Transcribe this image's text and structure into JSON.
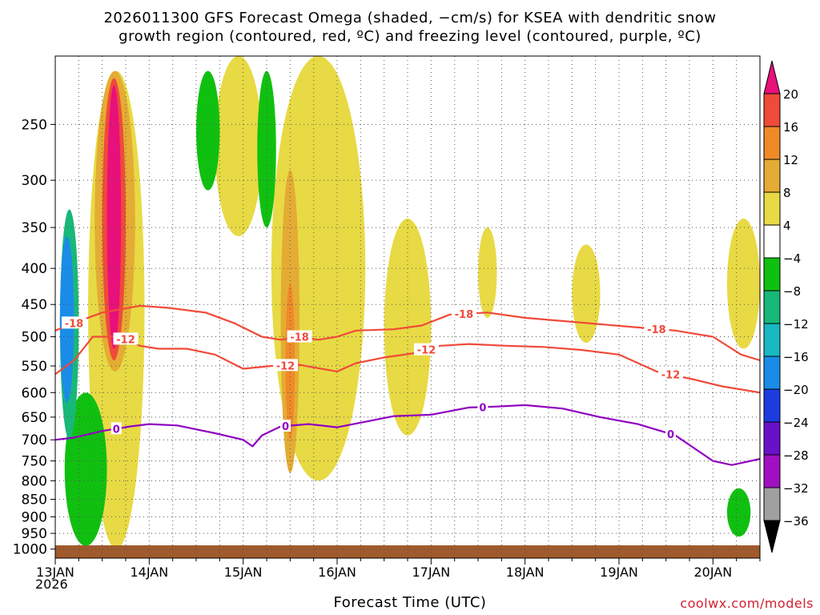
{
  "title_line1": "2026011300 GFS Forecast Omega (shaded, −cm/s) for KSEA with dendritic snow",
  "title_line2": "growth region (contoured, red, ºC) and freezing level (contoured, purple, ºC)",
  "credit": "coolwx.com/models",
  "chart_data": {
    "type": "heatmap",
    "title": "2026011300 GFS Forecast Omega (shaded, −cm/s) for KSEA with dendritic snow growth region (contoured, red, ºC) and freezing level (contoured, purple, ºC)",
    "xlabel": "Forecast Time (UTC)",
    "ylabel": "",
    "x_ticks": [
      "13JAN",
      "14JAN",
      "15JAN",
      "16JAN",
      "17JAN",
      "18JAN",
      "19JAN",
      "20JAN"
    ],
    "x_year": "2026",
    "xlim_days": [
      0,
      7.5
    ],
    "y_ticks": [
      250,
      300,
      350,
      400,
      450,
      500,
      550,
      600,
      650,
      700,
      750,
      800,
      850,
      900,
      950,
      1000
    ],
    "ylim": [
      1030,
      200
    ],
    "y_scale": "log-pressure",
    "grid": true,
    "colorbar": {
      "labels": [
        "20",
        "16",
        "12",
        "8",
        "4",
        "−4",
        "−8",
        "−12",
        "−16",
        "−20",
        "−24",
        "−28",
        "−32",
        "−36"
      ],
      "colors": [
        "#e8107a",
        "#f04a3a",
        "#f08a28",
        "#e4ac34",
        "#e8da44",
        "#ffffff",
        "#10c010",
        "#18b878",
        "#1ab8c0",
        "#1a8ce8",
        "#1c3ce0",
        "#6a10c8",
        "#a010c0",
        "#a0a0a0"
      ],
      "top_color": "#e8107a",
      "bottom_color": "#000000"
    },
    "omega_regions": [
      {
        "level": "4",
        "t": [
          0.35,
          0.95
        ],
        "p": [
          210,
          1000
        ]
      },
      {
        "level": "8",
        "t": [
          0.42,
          0.85
        ],
        "p": [
          210,
          560
        ]
      },
      {
        "level": "16",
        "t": [
          0.5,
          0.75
        ],
        "p": [
          215,
          540
        ]
      },
      {
        "level": "20",
        "t": [
          0.55,
          0.7
        ],
        "p": [
          220,
          520
        ]
      },
      {
        "level": "-8",
        "t": [
          0.1,
          0.55
        ],
        "p": [
          600,
          990
        ]
      },
      {
        "level": "-12",
        "t": [
          0.05,
          0.25
        ],
        "p": [
          330,
          700
        ]
      },
      {
        "level": "-20",
        "t": [
          0.05,
          0.2
        ],
        "p": [
          360,
          620
        ]
      },
      {
        "level": "4",
        "t": [
          1.7,
          2.2
        ],
        "p": [
          200,
          360
        ]
      },
      {
        "level": "4",
        "t": [
          2.3,
          3.3
        ],
        "p": [
          200,
          800
        ]
      },
      {
        "level": "8",
        "t": [
          2.4,
          2.6
        ],
        "p": [
          290,
          780
        ]
      },
      {
        "level": "12",
        "t": [
          2.45,
          2.55
        ],
        "p": [
          420,
          700
        ]
      },
      {
        "level": "4",
        "t": [
          3.5,
          4.0
        ],
        "p": [
          340,
          690
        ]
      },
      {
        "level": "4",
        "t": [
          4.5,
          4.7
        ],
        "p": [
          350,
          470
        ]
      },
      {
        "level": "4",
        "t": [
          5.5,
          5.8
        ],
        "p": [
          370,
          510
        ]
      },
      {
        "level": "4",
        "t": [
          7.15,
          7.5
        ],
        "p": [
          340,
          520
        ]
      },
      {
        "level": "-8",
        "t": [
          7.15,
          7.4
        ],
        "p": [
          820,
          960
        ]
      },
      {
        "level": "-8",
        "t": [
          1.5,
          1.75
        ],
        "p": [
          210,
          310
        ]
      },
      {
        "level": "-8",
        "t": [
          2.15,
          2.35
        ],
        "p": [
          210,
          350
        ]
      }
    ],
    "series": [
      {
        "name": "-18",
        "color": "#f04a3a",
        "t": [
          0,
          0.2,
          0.5,
          0.9,
          1.2,
          1.6,
          1.9,
          2.2,
          2.4,
          2.6,
          2.8,
          3.0,
          3.2,
          3.6,
          3.9,
          4.2,
          4.6,
          5.0,
          5.4,
          5.8,
          6.2,
          6.6,
          7.0,
          7.3,
          7.5
        ],
        "p": [
          490,
          478,
          462,
          452,
          455,
          462,
          478,
          500,
          505,
          500,
          505,
          500,
          490,
          488,
          482,
          465,
          462,
          470,
          475,
          480,
          485,
          490,
          500,
          530,
          540
        ],
        "labels_at": [
          0.2,
          2.6,
          4.35,
          6.4
        ],
        "label_text": "-18"
      },
      {
        "name": "-12",
        "color": "#f04a3a",
        "t": [
          0,
          0.2,
          0.4,
          0.7,
          0.9,
          1.1,
          1.4,
          1.7,
          2.0,
          2.3,
          2.6,
          3.0,
          3.2,
          3.5,
          3.8,
          4.1,
          4.4,
          4.8,
          5.2,
          5.6,
          6.0,
          6.4,
          6.8,
          7.1,
          7.5
        ],
        "p": [
          565,
          540,
          500,
          500,
          515,
          520,
          520,
          530,
          555,
          550,
          548,
          560,
          545,
          535,
          528,
          515,
          512,
          515,
          517,
          522,
          530,
          560,
          575,
          588,
          600
        ],
        "labels_at": [
          0.75,
          2.45,
          3.95,
          6.55
        ],
        "label_text": "-12"
      },
      {
        "name": "0",
        "color": "#9000c0",
        "t": [
          0,
          0.2,
          0.5,
          0.8,
          1.0,
          1.3,
          1.7,
          2.0,
          2.1,
          2.2,
          2.4,
          2.7,
          3.0,
          3.3,
          3.6,
          4.0,
          4.4,
          4.7,
          5.0,
          5.4,
          5.8,
          6.2,
          6.6,
          7.0,
          7.2,
          7.5
        ],
        "p": [
          700,
          695,
          680,
          670,
          665,
          668,
          685,
          700,
          715,
          690,
          670,
          665,
          672,
          660,
          648,
          645,
          630,
          628,
          625,
          632,
          650,
          665,
          690,
          750,
          760,
          745
        ],
        "labels_at": [
          0.65,
          2.45,
          4.55,
          6.55
        ],
        "label_text": "0"
      }
    ]
  }
}
